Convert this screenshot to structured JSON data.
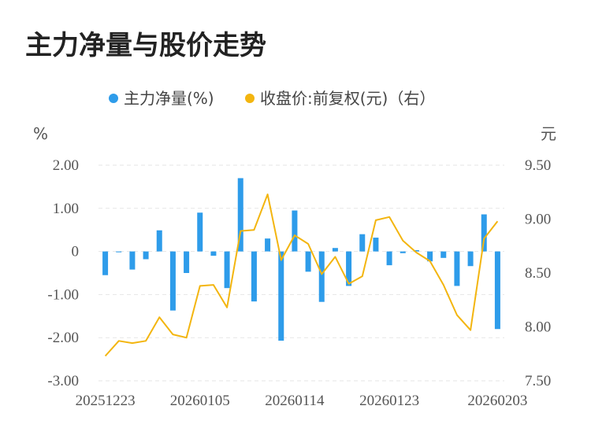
{
  "title": "主力净量与股价走势",
  "chart_data": {
    "type": "bar+line",
    "legend": [
      {
        "name": "主力净量(%)",
        "color": "#2e9cea",
        "kind": "bar"
      },
      {
        "name": "收盘价:前复权(元)（右）",
        "color": "#f3b50f",
        "kind": "line"
      }
    ],
    "y_left": {
      "unit": "%",
      "min": -3,
      "max": 2,
      "ticks": [
        "2.00",
        "1.00",
        "0",
        "-1.00",
        "-2.00",
        "-3.00"
      ],
      "tick_values": [
        2,
        1,
        0,
        -1,
        -2,
        -3
      ]
    },
    "y_right": {
      "unit": "元",
      "min": 7.5,
      "max": 9.5,
      "ticks": [
        "9.50",
        "9.00",
        "8.50",
        "8.00",
        "7.50"
      ],
      "tick_values": [
        9.5,
        9.0,
        8.5,
        8.0,
        7.5
      ]
    },
    "x_tick_labels": [
      {
        "index": 0,
        "label": "20251223"
      },
      {
        "index": 7,
        "label": "20260105"
      },
      {
        "index": 14,
        "label": "20260114"
      },
      {
        "index": 21,
        "label": "20260123"
      },
      {
        "index": 29,
        "label": "20260203"
      }
    ],
    "bars": [
      -0.55,
      -0.02,
      -0.42,
      -0.18,
      0.49,
      -1.37,
      -0.5,
      0.9,
      -0.1,
      -0.85,
      1.7,
      -1.16,
      0.3,
      -2.07,
      0.95,
      -0.47,
      -1.17,
      0.08,
      -0.8,
      0.4,
      0.32,
      -0.32,
      -0.04,
      0.03,
      -0.23,
      -0.15,
      -0.8,
      -0.34,
      0.86,
      -1.8
    ],
    "line": [
      7.73,
      7.87,
      7.85,
      7.87,
      8.09,
      7.93,
      7.9,
      8.38,
      8.39,
      8.18,
      8.89,
      8.9,
      9.23,
      8.62,
      8.85,
      8.77,
      8.49,
      8.65,
      8.4,
      8.47,
      8.99,
      9.02,
      8.8,
      8.69,
      8.61,
      8.39,
      8.11,
      7.97,
      8.82,
      8.98
    ]
  }
}
